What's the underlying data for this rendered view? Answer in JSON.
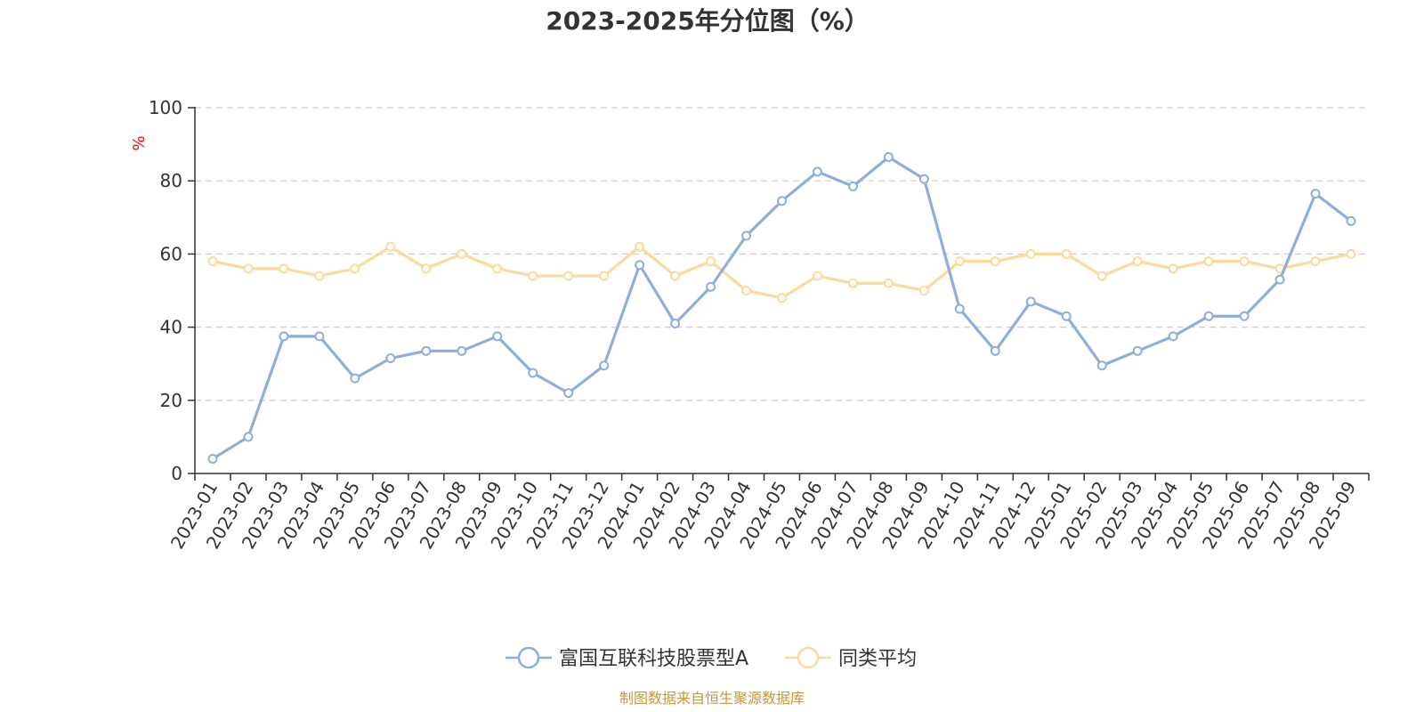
{
  "chart_data": {
    "type": "line",
    "title": "2023-2025年分位图（%）",
    "ylabel": "%",
    "xlabel": "",
    "ylim": [
      0,
      100
    ],
    "yticks": [
      "0",
      "20",
      "40",
      "60",
      "80",
      "100"
    ],
    "grid": true,
    "legend_position": "bottom",
    "categories": [
      "2023-01",
      "2023-02",
      "2023-03",
      "2023-04",
      "2023-05",
      "2023-06",
      "2023-07",
      "2023-08",
      "2023-09",
      "2023-10",
      "2023-11",
      "2023-12",
      "2024-01",
      "2024-02",
      "2024-03",
      "2024-04",
      "2024-05",
      "2024-06",
      "2024-07",
      "2024-08",
      "2024-09",
      "2024-10",
      "2024-11",
      "2024-12",
      "2025-01",
      "2025-02",
      "2025-03",
      "2025-04",
      "2025-05",
      "2025-06",
      "2025-07",
      "2025-08",
      "2025-09"
    ],
    "series": [
      {
        "name": "富国互联科技股票型A",
        "color": "#8eaedb",
        "values": [
          4,
          10,
          37.5,
          37.5,
          26,
          31.5,
          33.5,
          33.5,
          37.5,
          27.5,
          22,
          29.5,
          57,
          41,
          51,
          65,
          74.5,
          82.5,
          78.5,
          86.5,
          80.5,
          45,
          33.5,
          47,
          43,
          29.5,
          33.5,
          37.5,
          43,
          43,
          53,
          76.5,
          69
        ]
      },
      {
        "name": "同类平均",
        "color": "#fdd99b",
        "values": [
          58,
          56,
          56,
          54,
          56,
          62,
          56,
          60,
          56,
          54,
          54,
          54,
          62,
          54,
          58,
          50,
          48,
          54,
          52,
          52,
          50,
          58,
          58,
          60,
          60,
          54,
          58,
          56,
          58,
          58,
          56,
          58,
          60
        ]
      }
    ],
    "source": "制图数据来自恒生聚源数据库"
  }
}
